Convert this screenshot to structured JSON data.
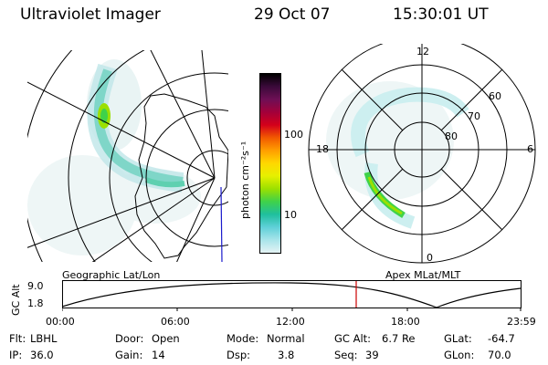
{
  "header": {
    "instrument": "Ultraviolet Imager",
    "date": "29 Oct 07",
    "time": "15:30:01 UT"
  },
  "colorbar": {
    "unit_label": "photon cm⁻²s⁻¹",
    "ticks": [
      "100",
      "10"
    ],
    "colors": [
      "#000000",
      "#3b0a3a",
      "#6e0f55",
      "#a3003a",
      "#d4001a",
      "#f25a00",
      "#ff9e00",
      "#ffd800",
      "#e6f000",
      "#9be000",
      "#3fd24a",
      "#1fbf9e",
      "#5fd0d8",
      "#a8e4ea",
      "#e4f3f4"
    ]
  },
  "left_map": {
    "caption": "Geographic Lat/Lon"
  },
  "right_map": {
    "caption": "Apex MLat/MLT",
    "mlt_labels": {
      "top": "12",
      "bottom": "0",
      "left": "18",
      "right": "6"
    },
    "lat_labels": [
      "60",
      "70",
      "80"
    ]
  },
  "altitude_plot": {
    "ylabel": "GC Alt",
    "yticks": [
      "9.0",
      "1.8"
    ],
    "xticks": [
      "00:00",
      "06:00",
      "12:00",
      "18:00",
      "23:59"
    ],
    "curve_color": "#000000",
    "marker_color": "#cc0000"
  },
  "info": {
    "flt_label": "Flt:",
    "flt_value": "LBHL",
    "ip_label": "IP:",
    "ip_value": "36.0",
    "door_label": "Door:",
    "door_value": "Open",
    "gain_label": "Gain:",
    "gain_value": "14",
    "mode_label": "Mode:",
    "mode_value": "Normal",
    "dsp_label": "Dsp:",
    "dsp_value": "3.8",
    "gcalt_label": "GC Alt:",
    "gcalt_value": "6.7 Re",
    "seq_label": "Seq:",
    "seq_value": "39",
    "glat_label": "GLat:",
    "glat_value": "-64.7",
    "glon_label": "GLon:",
    "glon_value": "70.0"
  }
}
